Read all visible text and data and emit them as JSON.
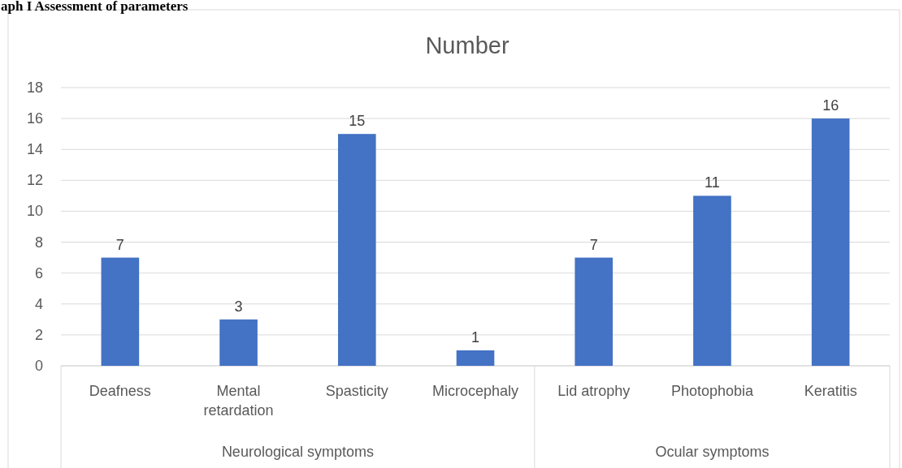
{
  "chart_data": {
    "type": "bar",
    "title": "Number",
    "categories": [
      "Deafness",
      "Mental retardation",
      "Spasticity",
      "Microcephaly",
      "Lid atrophy",
      "Photophobia",
      "Keratitis"
    ],
    "values": [
      7,
      3,
      15,
      1,
      7,
      11,
      16
    ],
    "color": "#4472c4",
    "ylim": [
      0,
      18
    ],
    "yticks": [
      0,
      2,
      4,
      6,
      8,
      10,
      12,
      14,
      16,
      18
    ],
    "grid": "y",
    "data_labels": true,
    "annotations": [
      "aph I Assessment of parameters",
      "Neurological symptoms",
      "Ocular symptoms"
    ]
  }
}
